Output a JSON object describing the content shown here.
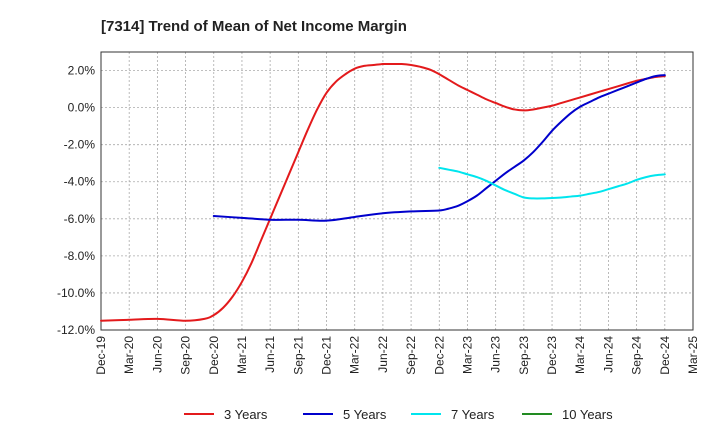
{
  "chart_data": {
    "type": "line",
    "title": "[7314]  Trend of Mean of Net Income Margin",
    "xlabel": "",
    "ylabel": "",
    "x_ticks": [
      "Dec-19",
      "Mar-20",
      "Jun-20",
      "Sep-20",
      "Dec-20",
      "Mar-21",
      "Jun-21",
      "Sep-21",
      "Dec-21",
      "Mar-22",
      "Jun-22",
      "Sep-22",
      "Dec-22",
      "Mar-23",
      "Jun-23",
      "Sep-23",
      "Dec-23",
      "Mar-24",
      "Jun-24",
      "Sep-24",
      "Dec-24",
      "Mar-25"
    ],
    "y_ticks": [
      "2.0%",
      "0.0%",
      "-2.0%",
      "-4.0%",
      "-6.0%",
      "-8.0%",
      "-10.0%",
      "-12.0%"
    ],
    "ylim": [
      -12,
      3
    ],
    "grid": true,
    "legend_position": "bottom",
    "series": [
      {
        "name": "3 Years",
        "color": "#e31a1c",
        "x": [
          "Dec-19",
          "Mar-20",
          "Jun-20",
          "Sep-20",
          "Nov-20",
          "Dec-20",
          "Jan-21",
          "Feb-21",
          "Mar-21",
          "Apr-21",
          "May-21",
          "Jun-21",
          "Jul-21",
          "Aug-21",
          "Sep-21",
          "Oct-21",
          "Nov-21",
          "Dec-21",
          "Jan-22",
          "Feb-22",
          "Mar-22",
          "Apr-22",
          "May-22",
          "Jun-22",
          "Jul-22",
          "Aug-22",
          "Sep-22",
          "Oct-22",
          "Nov-22",
          "Dec-22",
          "Jan-23",
          "Feb-23",
          "Mar-23",
          "Apr-23",
          "May-23",
          "Jun-23",
          "Jul-23",
          "Aug-23",
          "Sep-23",
          "Oct-23",
          "Nov-23",
          "Dec-23",
          "Jan-24",
          "Feb-24",
          "Mar-24",
          "Apr-24",
          "May-24",
          "Jun-24",
          "Jul-24",
          "Aug-24",
          "Sep-24",
          "Oct-24",
          "Nov-24",
          "Dec-24"
        ],
        "values": [
          -11.5,
          -11.45,
          -11.4,
          -11.5,
          -11.4,
          -11.2,
          -10.8,
          -10.2,
          -9.4,
          -8.4,
          -7.2,
          -6.0,
          -4.8,
          -3.6,
          -2.4,
          -1.2,
          -0.1,
          0.8,
          1.4,
          1.8,
          2.1,
          2.25,
          2.3,
          2.35,
          2.35,
          2.35,
          2.3,
          2.2,
          2.05,
          1.8,
          1.5,
          1.2,
          0.95,
          0.7,
          0.45,
          0.25,
          0.05,
          -0.1,
          -0.15,
          -0.1,
          0.0,
          0.1,
          0.25,
          0.4,
          0.55,
          0.7,
          0.85,
          1.0,
          1.15,
          1.3,
          1.45,
          1.55,
          1.65,
          1.7
        ]
      },
      {
        "name": "5 Years",
        "color": "#0000cc",
        "x": [
          "Dec-20",
          "Mar-21",
          "Jun-21",
          "Sep-21",
          "Dec-21",
          "Mar-22",
          "Jun-22",
          "Sep-22",
          "Dec-22",
          "Jan-23",
          "Feb-23",
          "Mar-23",
          "Apr-23",
          "May-23",
          "Jun-23",
          "Jul-23",
          "Aug-23",
          "Sep-23",
          "Oct-23",
          "Nov-23",
          "Dec-23",
          "Jan-24",
          "Feb-24",
          "Mar-24",
          "Apr-24",
          "May-24",
          "Jun-24",
          "Jul-24",
          "Aug-24",
          "Sep-24",
          "Oct-24",
          "Nov-24",
          "Dec-24"
        ],
        "values": [
          -5.85,
          -5.95,
          -6.05,
          -6.05,
          -6.1,
          -5.9,
          -5.7,
          -5.6,
          -5.55,
          -5.45,
          -5.3,
          -5.05,
          -4.75,
          -4.35,
          -3.95,
          -3.55,
          -3.2,
          -2.85,
          -2.4,
          -1.85,
          -1.25,
          -0.75,
          -0.3,
          0.05,
          0.3,
          0.55,
          0.75,
          0.95,
          1.15,
          1.35,
          1.55,
          1.7,
          1.75
        ]
      },
      {
        "name": "7 Years",
        "color": "#00e5ee",
        "x": [
          "Dec-22",
          "Jan-23",
          "Feb-23",
          "Mar-23",
          "Apr-23",
          "May-23",
          "Jun-23",
          "Jul-23",
          "Aug-23",
          "Sep-23",
          "Oct-23",
          "Nov-23",
          "Dec-23",
          "Jan-24",
          "Feb-24",
          "Mar-24",
          "Apr-24",
          "May-24",
          "Jun-24",
          "Jul-24",
          "Aug-24",
          "Sep-24",
          "Oct-24",
          "Nov-24",
          "Dec-24"
        ],
        "values": [
          -3.25,
          -3.35,
          -3.45,
          -3.6,
          -3.75,
          -3.95,
          -4.2,
          -4.45,
          -4.65,
          -4.85,
          -4.9,
          -4.9,
          -4.88,
          -4.85,
          -4.8,
          -4.75,
          -4.65,
          -4.55,
          -4.4,
          -4.25,
          -4.1,
          -3.9,
          -3.75,
          -3.65,
          -3.6
        ]
      },
      {
        "name": "10 Years",
        "color": "#228b22",
        "x": [],
        "values": []
      }
    ]
  }
}
